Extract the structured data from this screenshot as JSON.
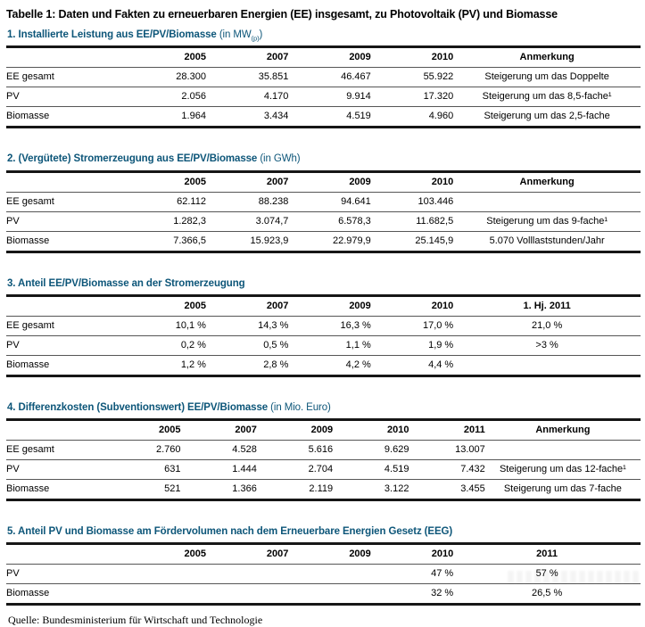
{
  "page": {
    "title": "Tabelle 1: Daten und Fakten zu erneuerbaren Energien (EE) insgesamt, zu Photovoltaik (PV) und Biomasse",
    "source": "Quelle: Bundesministerium für Wirtschaft und Technologie"
  },
  "colors": {
    "accent": "#0d5679",
    "rule_dark": "#161616",
    "rule_thin": "#565656"
  },
  "tables": [
    {
      "heading": "1. Installierte Leistung aus EE/PV/Biomasse",
      "unit_pre": " (in MW",
      "unit_sub": "(p)",
      "unit_post": ")",
      "columns": [
        "",
        "2005",
        "2007",
        "2009",
        "2010",
        "Anmerkung"
      ],
      "rows": [
        {
          "label": "EE gesamt",
          "values": [
            "28.300",
            "35.851",
            "46.467",
            "55.922"
          ],
          "note": "Steigerung um das Doppelte"
        },
        {
          "label": "PV",
          "values": [
            "2.056",
            "4.170",
            "9.914",
            "17.320"
          ],
          "note": "Steigerung um das 8,5-fache¹"
        },
        {
          "label": "Biomasse",
          "values": [
            "1.964",
            "3.434",
            "4.519",
            "4.960"
          ],
          "note": "Steigerung um das 2,5-fache"
        }
      ]
    },
    {
      "heading": "2. (Vergütete) Stromerzeugung aus EE/PV/Biomasse",
      "unit_pre": " (in GWh)",
      "unit_sub": "",
      "unit_post": "",
      "columns": [
        "",
        "2005",
        "2007",
        "2009",
        "2010",
        "Anmerkung"
      ],
      "rows": [
        {
          "label": "EE gesamt",
          "values": [
            "62.112",
            "88.238",
            "94.641",
            "103.446"
          ],
          "note": ""
        },
        {
          "label": "PV",
          "values": [
            "1.282,3",
            "3.074,7",
            "6.578,3",
            "11.682,5"
          ],
          "note": "Steigerung um das 9-fache¹"
        },
        {
          "label": "Biomasse",
          "values": [
            "7.366,5",
            "15.923,9",
            "22.979,9",
            "25.145,9"
          ],
          "note": "5.070 Volllaststunden/Jahr"
        }
      ]
    },
    {
      "heading": "3. Anteil EE/PV/Biomasse an der Stromerzeugung",
      "unit_pre": "",
      "unit_sub": "",
      "unit_post": "",
      "columns": [
        "",
        "2005",
        "2007",
        "2009",
        "2010",
        "1. Hj. 2011"
      ],
      "rows": [
        {
          "label": "EE gesamt",
          "values": [
            "10,1 %",
            "14,3 %",
            "16,3 %",
            "17,0 %"
          ],
          "note": "21,0 %"
        },
        {
          "label": "PV",
          "values": [
            "0,2 %",
            "0,5 %",
            "1,1 %",
            "1,9 %"
          ],
          "note": ">3 %"
        },
        {
          "label": "Biomasse",
          "values": [
            "1,2 %",
            "2,8 %",
            "4,2 %",
            "4,4 %"
          ],
          "note": ""
        }
      ]
    },
    {
      "heading": "4. Differenzkosten (Subventionswert) EE/PV/Biomasse",
      "unit_pre": " (in Mio. Euro)",
      "unit_sub": "",
      "unit_post": "",
      "columns": [
        "",
        "2005",
        "2007",
        "2009",
        "2010",
        "2011",
        "Anmerkung"
      ],
      "rows": [
        {
          "label": "EE gesamt",
          "values": [
            "2.760",
            "4.528",
            "5.616",
            "9.629",
            "13.007"
          ],
          "note": ""
        },
        {
          "label": "PV",
          "values": [
            "631",
            "1.444",
            "2.704",
            "4.519",
            "7.432"
          ],
          "note": "Steigerung um das 12-fache¹"
        },
        {
          "label": "Biomasse",
          "values": [
            "521",
            "1.366",
            "2.119",
            "3.122",
            "3.455"
          ],
          "note": "Steigerung um das 7-fache"
        }
      ]
    },
    {
      "heading": "5. Anteil PV und Biomasse am Fördervolumen nach dem Erneuerbare Energien Gesetz (EEG)",
      "unit_pre": "",
      "unit_sub": "",
      "unit_post": "",
      "columns": [
        "",
        "2005",
        "2007",
        "2009",
        "2010",
        "2011"
      ],
      "rows": [
        {
          "label": "PV",
          "values": [
            "",
            "",
            "",
            "47 %"
          ],
          "note": "57 %"
        },
        {
          "label": "Biomasse",
          "values": [
            "",
            "",
            "",
            "32 %"
          ],
          "note": "26,5 %"
        }
      ]
    }
  ]
}
